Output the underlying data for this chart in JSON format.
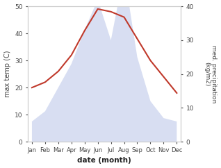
{
  "months": [
    "Jan",
    "Feb",
    "Mar",
    "Apr",
    "May",
    "Jun",
    "Jul",
    "Aug",
    "Sep",
    "Oct",
    "Nov",
    "Dec"
  ],
  "month_indices": [
    0,
    1,
    2,
    3,
    4,
    5,
    6,
    7,
    8,
    9,
    10,
    11
  ],
  "precipitation": [
    6,
    9,
    16,
    23,
    33,
    42,
    30,
    50,
    25,
    12,
    7,
    6
  ],
  "temperature": [
    20,
    22,
    26,
    32,
    41,
    49,
    48,
    46,
    38,
    30,
    24,
    18
  ],
  "precip_color": "#b8c4e8",
  "temp_color": "#c0392b",
  "left_ylim": [
    0,
    50
  ],
  "right_ylim": [
    0,
    40
  ],
  "left_yticks": [
    0,
    10,
    20,
    30,
    40,
    50
  ],
  "right_yticks": [
    0,
    10,
    20,
    30,
    40
  ],
  "left_ylabel": "max temp (C)",
  "right_ylabel": "med. precipitation\n(kg/m2)",
  "xlabel": "date (month)",
  "bg_color": "#ffffff",
  "figsize": [
    3.18,
    2.42
  ],
  "dpi": 100
}
